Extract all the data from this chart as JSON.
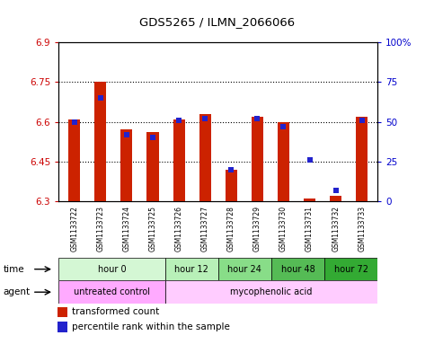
{
  "title": "GDS5265 / ILMN_2066066",
  "samples": [
    "GSM1133722",
    "GSM1133723",
    "GSM1133724",
    "GSM1133725",
    "GSM1133726",
    "GSM1133727",
    "GSM1133728",
    "GSM1133729",
    "GSM1133730",
    "GSM1133731",
    "GSM1133732",
    "GSM1133733"
  ],
  "red_values": [
    6.61,
    6.75,
    6.57,
    6.56,
    6.61,
    6.63,
    6.42,
    6.62,
    6.6,
    6.31,
    6.32,
    6.62
  ],
  "blue_values": [
    50,
    65,
    42,
    40,
    51,
    52,
    20,
    52,
    47,
    26,
    7,
    51
  ],
  "ylim_left": [
    6.3,
    6.9
  ],
  "ylim_right": [
    0,
    100
  ],
  "yticks_left": [
    6.3,
    6.45,
    6.6,
    6.75,
    6.9
  ],
  "yticks_right": [
    0,
    25,
    50,
    75,
    100
  ],
  "ytick_labels_left": [
    "6.3",
    "6.45",
    "6.6",
    "6.75",
    "6.9"
  ],
  "ytick_labels_right": [
    "0",
    "25",
    "50",
    "75",
    "100%"
  ],
  "base_value": 6.3,
  "time_groups": [
    {
      "label": "hour 0",
      "start": 0,
      "end": 3,
      "color": "#d4f7d4"
    },
    {
      "label": "hour 12",
      "start": 4,
      "end": 5,
      "color": "#b8f0b8"
    },
    {
      "label": "hour 24",
      "start": 6,
      "end": 7,
      "color": "#88dd88"
    },
    {
      "label": "hour 48",
      "start": 8,
      "end": 9,
      "color": "#55bb55"
    },
    {
      "label": "hour 72",
      "start": 10,
      "end": 11,
      "color": "#33aa33"
    }
  ],
  "agent_groups": [
    {
      "label": "untreated control",
      "start": 0,
      "end": 3,
      "color": "#ffaaff"
    },
    {
      "label": "mycophenolic acid",
      "start": 4,
      "end": 11,
      "color": "#ffccff"
    }
  ],
  "bar_color": "#cc2200",
  "blue_color": "#2222cc",
  "background_color": "#ffffff",
  "left_tick_color": "#cc0000",
  "right_tick_color": "#0000cc",
  "grid_yticks": [
    6.45,
    6.6,
    6.75
  ]
}
